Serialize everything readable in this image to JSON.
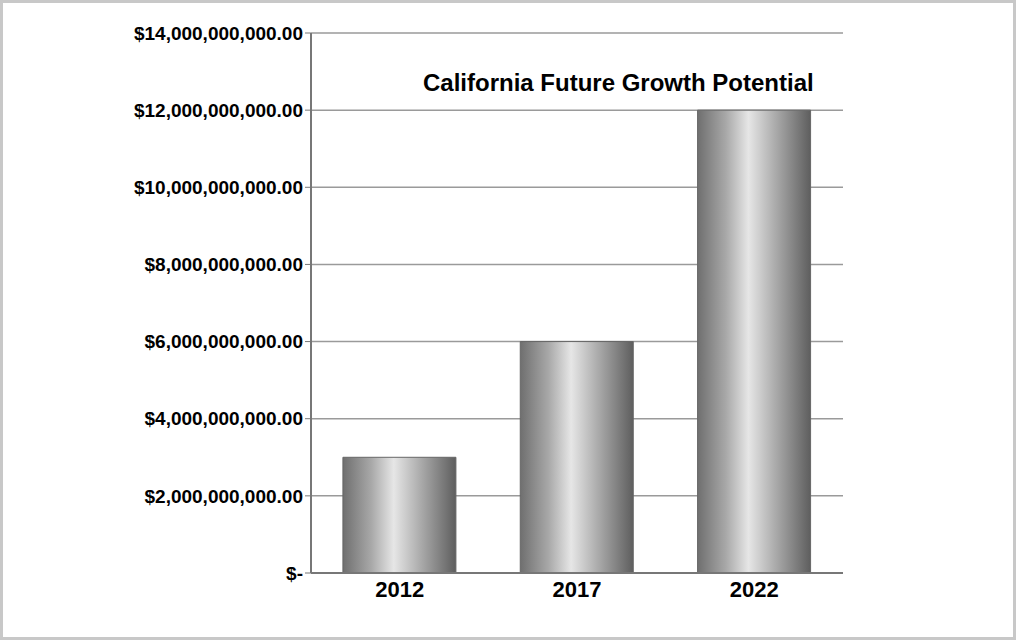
{
  "chart_data": {
    "type": "bar",
    "title": "California Future Growth Potential",
    "categories": [
      "2012",
      "2017",
      "2022"
    ],
    "values": [
      3000000000,
      6000000000,
      12000000000
    ],
    "color": "#a8a8a8",
    "ylim": [
      0,
      14000000000
    ],
    "yticks": [
      {
        "value": 0,
        "label": "$-"
      },
      {
        "value": 2000000000,
        "label": "$2,000,000,000.00"
      },
      {
        "value": 4000000000,
        "label": "$4,000,000,000.00"
      },
      {
        "value": 6000000000,
        "label": "$6,000,000,000.00"
      },
      {
        "value": 8000000000,
        "label": "$8,000,000,000.00"
      },
      {
        "value": 10000000000,
        "label": "$10,000,000,000.00"
      },
      {
        "value": 12000000000,
        "label": "$12,000,000,000.00"
      },
      {
        "value": 14000000000,
        "label": "$14,000,000,000.00"
      }
    ],
    "grid": true
  }
}
